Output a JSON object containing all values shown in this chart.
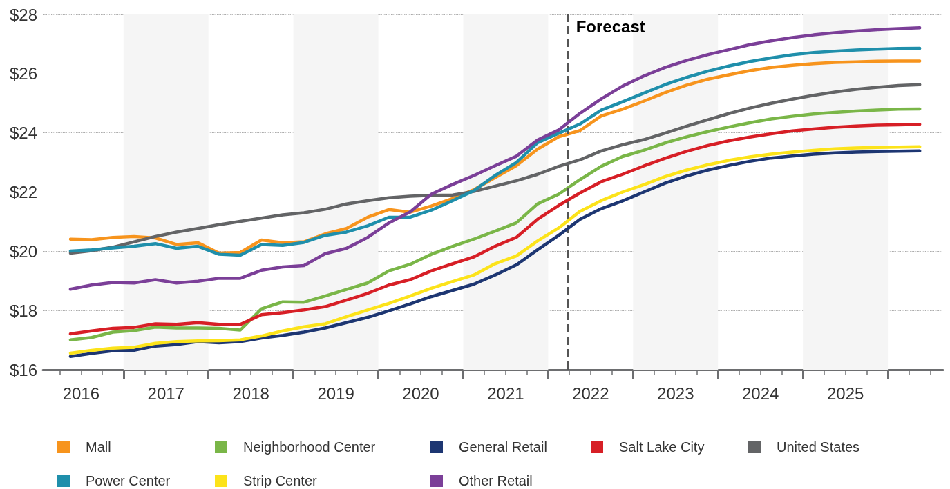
{
  "chart_data": {
    "type": "line",
    "x": [
      2016.375,
      2016.625,
      2016.875,
      2017.125,
      2017.375,
      2017.625,
      2017.875,
      2018.125,
      2018.375,
      2018.625,
      2018.875,
      2019.125,
      2019.375,
      2019.625,
      2019.875,
      2020.125,
      2020.375,
      2020.625,
      2020.875,
      2021.125,
      2021.375,
      2021.625,
      2021.875,
      2022.125,
      2022.375,
      2022.625,
      2022.875,
      2023.125,
      2023.375,
      2023.625,
      2023.875,
      2024.125,
      2024.375,
      2024.625,
      2024.875,
      2025.125,
      2025.375,
      2025.625,
      2025.875,
      2026.125,
      2026.375
    ],
    "series": [
      {
        "name": "Mall",
        "color": "#f7941d",
        "values": [
          20.41,
          20.39,
          20.47,
          20.5,
          20.45,
          20.23,
          20.29,
          19.94,
          19.96,
          20.38,
          20.29,
          20.32,
          20.59,
          20.77,
          21.15,
          21.41,
          21.32,
          21.53,
          21.78,
          22.08,
          22.49,
          22.89,
          23.45,
          23.87,
          24.08,
          24.57,
          24.8,
          25.07,
          25.36,
          25.61,
          25.81,
          25.96,
          26.1,
          26.21,
          26.28,
          26.34,
          26.38,
          26.4,
          26.42,
          26.43,
          26.43
        ]
      },
      {
        "name": "Neighborhood Center",
        "color": "#7ab648",
        "values": [
          17.01,
          17.09,
          17.27,
          17.32,
          17.44,
          17.41,
          17.41,
          17.4,
          17.34,
          18.06,
          18.29,
          18.28,
          18.49,
          18.71,
          18.93,
          19.34,
          19.56,
          19.9,
          20.17,
          20.41,
          20.68,
          20.96,
          21.6,
          21.93,
          22.42,
          22.87,
          23.2,
          23.41,
          23.66,
          23.86,
          24.04,
          24.2,
          24.34,
          24.47,
          24.56,
          24.64,
          24.69,
          24.74,
          24.77,
          24.8,
          24.81
        ]
      },
      {
        "name": "General Retail",
        "color": "#1d3672",
        "values": [
          16.45,
          16.55,
          16.64,
          16.66,
          16.8,
          16.85,
          16.95,
          16.91,
          16.95,
          17.07,
          17.16,
          17.27,
          17.41,
          17.59,
          17.77,
          17.99,
          18.22,
          18.47,
          18.68,
          18.89,
          19.2,
          19.54,
          20.05,
          20.54,
          21.08,
          21.44,
          21.7,
          22.0,
          22.3,
          22.54,
          22.74,
          22.9,
          23.04,
          23.15,
          23.22,
          23.28,
          23.32,
          23.35,
          23.37,
          23.38,
          23.39
        ]
      },
      {
        "name": "Salt Lake City",
        "color": "#d71f26",
        "values": [
          17.21,
          17.31,
          17.4,
          17.43,
          17.55,
          17.53,
          17.59,
          17.53,
          17.53,
          17.86,
          17.93,
          18.02,
          18.13,
          18.35,
          18.58,
          18.86,
          19.04,
          19.34,
          19.58,
          19.81,
          20.17,
          20.47,
          21.08,
          21.55,
          21.97,
          22.35,
          22.6,
          22.88,
          23.14,
          23.37,
          23.57,
          23.73,
          23.86,
          23.97,
          24.07,
          24.13,
          24.19,
          24.23,
          24.26,
          24.27,
          24.29
        ]
      },
      {
        "name": "United States",
        "color": "#636466",
        "values": [
          19.94,
          20.02,
          20.14,
          20.32,
          20.5,
          20.65,
          20.77,
          20.9,
          21.01,
          21.12,
          21.23,
          21.3,
          21.42,
          21.6,
          21.71,
          21.81,
          21.86,
          21.89,
          21.9,
          22.02,
          22.2,
          22.38,
          22.6,
          22.87,
          23.09,
          23.39,
          23.6,
          23.77,
          23.99,
          24.22,
          24.44,
          24.65,
          24.84,
          25.0,
          25.14,
          25.27,
          25.38,
          25.47,
          25.54,
          25.6,
          25.63
        ]
      },
      {
        "name": "Power Center",
        "color": "#1f8fab",
        "values": [
          20.01,
          20.05,
          20.11,
          20.17,
          20.26,
          20.1,
          20.17,
          19.9,
          19.87,
          20.23,
          20.2,
          20.3,
          20.54,
          20.65,
          20.86,
          21.15,
          21.15,
          21.39,
          21.71,
          22.05,
          22.56,
          23.0,
          23.67,
          23.99,
          24.3,
          24.77,
          25.05,
          25.34,
          25.63,
          25.87,
          26.08,
          26.26,
          26.41,
          26.53,
          26.64,
          26.71,
          26.76,
          26.8,
          26.83,
          26.85,
          26.86
        ]
      },
      {
        "name": "Strip Center",
        "color": "#fce31a",
        "values": [
          16.56,
          16.65,
          16.73,
          16.76,
          16.89,
          16.95,
          16.97,
          16.98,
          17.01,
          17.14,
          17.31,
          17.45,
          17.55,
          17.79,
          18.02,
          18.24,
          18.49,
          18.75,
          18.98,
          19.2,
          19.58,
          19.84,
          20.35,
          20.79,
          21.35,
          21.71,
          22.0,
          22.25,
          22.52,
          22.74,
          22.92,
          23.07,
          23.19,
          23.28,
          23.35,
          23.41,
          23.46,
          23.49,
          23.51,
          23.52,
          23.53
        ]
      },
      {
        "name": "Other Retail",
        "color": "#7b3f98",
        "values": [
          18.72,
          18.86,
          18.95,
          18.93,
          19.04,
          18.93,
          18.99,
          19.09,
          19.09,
          19.36,
          19.47,
          19.52,
          19.92,
          20.1,
          20.47,
          20.96,
          21.33,
          21.93,
          22.26,
          22.56,
          22.89,
          23.21,
          23.76,
          24.1,
          24.66,
          25.15,
          25.58,
          25.92,
          26.21,
          26.44,
          26.64,
          26.81,
          26.98,
          27.11,
          27.22,
          27.31,
          27.38,
          27.44,
          27.49,
          27.52,
          27.55
        ]
      }
    ],
    "xlim": [
      2016.05,
      2026.65
    ],
    "xticks": [
      {
        "value": 2016.25,
        "label": null
      },
      {
        "value": 2016.5,
        "label": "2016"
      },
      {
        "value": 2016.75,
        "label": null
      },
      {
        "value": 2017,
        "label": null
      },
      {
        "value": 2017.25,
        "label": null
      },
      {
        "value": 2017.5,
        "label": "2017"
      },
      {
        "value": 2017.75,
        "label": null
      },
      {
        "value": 2018,
        "label": null
      },
      {
        "value": 2018.25,
        "label": null
      },
      {
        "value": 2018.5,
        "label": "2018"
      },
      {
        "value": 2018.75,
        "label": null
      },
      {
        "value": 2019,
        "label": null
      },
      {
        "value": 2019.25,
        "label": null
      },
      {
        "value": 2019.5,
        "label": "2019"
      },
      {
        "value": 2019.75,
        "label": null
      },
      {
        "value": 2020,
        "label": null
      },
      {
        "value": 2020.25,
        "label": null
      },
      {
        "value": 2020.5,
        "label": "2020"
      },
      {
        "value": 2020.75,
        "label": null
      },
      {
        "value": 2021,
        "label": null
      },
      {
        "value": 2021.25,
        "label": null
      },
      {
        "value": 2021.5,
        "label": "2021"
      },
      {
        "value": 2021.75,
        "label": null
      },
      {
        "value": 2022,
        "label": null
      },
      {
        "value": 2022.25,
        "label": null
      },
      {
        "value": 2022.5,
        "label": "2022"
      },
      {
        "value": 2022.75,
        "label": null
      },
      {
        "value": 2023,
        "label": null
      },
      {
        "value": 2023.25,
        "label": null
      },
      {
        "value": 2023.5,
        "label": "2023"
      },
      {
        "value": 2023.75,
        "label": null
      },
      {
        "value": 2024,
        "label": null
      },
      {
        "value": 2024.25,
        "label": null
      },
      {
        "value": 2024.5,
        "label": "2024"
      },
      {
        "value": 2024.75,
        "label": null
      },
      {
        "value": 2025,
        "label": null
      },
      {
        "value": 2025.25,
        "label": null
      },
      {
        "value": 2025.5,
        "label": "2025"
      },
      {
        "value": 2025.75,
        "label": null
      },
      {
        "value": 2026,
        "label": null
      },
      {
        "value": 2026.25,
        "label": null
      },
      {
        "value": 2026.5,
        "label": null
      }
    ],
    "ylim": [
      16,
      28
    ],
    "yticks": [
      {
        "value": 16,
        "label": "$16"
      },
      {
        "value": 18,
        "label": "$18"
      },
      {
        "value": 20,
        "label": "$20"
      },
      {
        "value": 22,
        "label": "$22"
      },
      {
        "value": 24,
        "label": "$24"
      },
      {
        "value": 26,
        "label": "$26"
      },
      {
        "value": 28,
        "label": "$28"
      }
    ],
    "ref_lines": [
      {
        "axis": "x",
        "value": 2022.23,
        "label": "Forecast",
        "color": "#555555",
        "line_style": "dashed"
      }
    ],
    "bands": [
      {
        "axis": "x",
        "from": 2017,
        "to": 2018,
        "color": "#f5f5f5"
      },
      {
        "axis": "x",
        "from": 2019,
        "to": 2020,
        "color": "#f5f5f5"
      },
      {
        "axis": "x",
        "from": 2021,
        "to": 2022,
        "color": "#f5f5f5"
      },
      {
        "axis": "x",
        "from": 2023,
        "to": 2024,
        "color": "#f5f5f5"
      },
      {
        "axis": "x",
        "from": 2025,
        "to": 2026,
        "color": "#f5f5f5"
      }
    ],
    "grid": "y",
    "legend": "bottom",
    "marker": "none",
    "line_style": "solid"
  }
}
